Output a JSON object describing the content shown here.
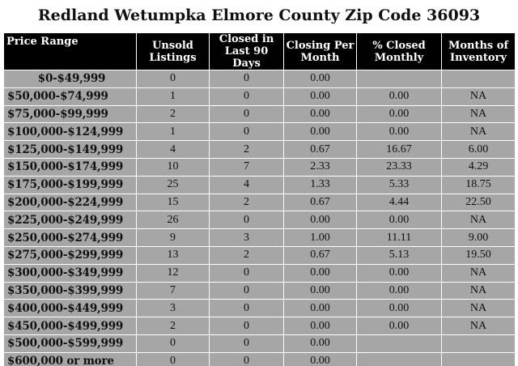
{
  "title": "Redland Wetumpka Elmore County Zip Code 36093",
  "table": {
    "columns": [
      "Price Range",
      "Unsold\nListings",
      "Closed in\nLast 90 Days",
      "Closing Per\nMonth",
      "% Closed\nMonthly",
      "Months of\nInventory"
    ],
    "rows": [
      [
        "$0-$49,999",
        "0",
        "0",
        "0.00",
        null,
        null
      ],
      [
        "$50,000-$74,999",
        "1",
        "0",
        "0.00",
        "0.00",
        "NA"
      ],
      [
        "$75,000-$99,999",
        "2",
        "0",
        "0.00",
        "0.00",
        "NA"
      ],
      [
        "$100,000-$124,999",
        "1",
        "0",
        "0.00",
        "0.00",
        "NA"
      ],
      [
        "$125,000-$149,999",
        "4",
        "2",
        "0.67",
        "16.67",
        "6.00"
      ],
      [
        "$150,000-$174,999",
        "10",
        "7",
        "2.33",
        "23.33",
        "4.29"
      ],
      [
        "$175,000-$199,999",
        "25",
        "4",
        "1.33",
        "5.33",
        "18.75"
      ],
      [
        "$200,000-$224,999",
        "15",
        "2",
        "0.67",
        "4.44",
        "22.50"
      ],
      [
        "$225,000-$249,999",
        "26",
        "0",
        "0.00",
        "0.00",
        "NA"
      ],
      [
        "$250,000-$274,999",
        "9",
        "3",
        "1.00",
        "11.11",
        "9.00"
      ],
      [
        "$275,000-$299,999",
        "13",
        "2",
        "0.67",
        "5.13",
        "19.50"
      ],
      [
        "$300,000-$349,999",
        "12",
        "0",
        "0.00",
        "0.00",
        "NA"
      ],
      [
        "$350,000-$399,999",
        "7",
        "0",
        "0.00",
        "0.00",
        "NA"
      ],
      [
        "$400,000-$449,999",
        "3",
        "0",
        "0.00",
        "0.00",
        "NA"
      ],
      [
        "$450,000-$499,999",
        "2",
        "0",
        "0.00",
        "0.00",
        "NA"
      ],
      [
        "$500,000-$599,999",
        "0",
        "0",
        "0.00",
        null,
        null
      ],
      [
        "$600,000 or more",
        "0",
        "0",
        "0.00",
        null,
        null
      ]
    ]
  }
}
